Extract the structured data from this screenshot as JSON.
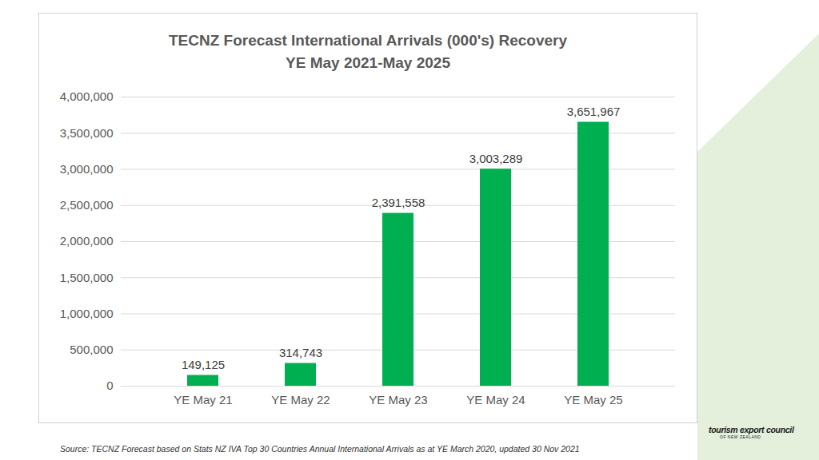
{
  "chart_data": {
    "type": "bar",
    "title": "TECNZ Forecast International Arrivals (000's) Recovery",
    "subtitle": "YE May 2021-May 2025",
    "categories": [
      "YE May 21",
      "YE May 22",
      "YE May 23",
      "YE May 24",
      "YE May 25"
    ],
    "values": [
      149125,
      314743,
      2391558,
      3003289,
      3651967
    ],
    "value_labels": [
      "149,125",
      "314,743",
      "2,391,558",
      "3,003,289",
      "3,651,967"
    ],
    "data_labels": true,
    "color": "#00b050",
    "ylim": [
      0,
      4000000
    ],
    "yticks": [
      0,
      {
        "value": 500000,
        "label": "500,000"
      },
      {
        "value": 1000000,
        "label": "1,000,000"
      },
      {
        "value": 1500000,
        "label": "1,500,000"
      },
      {
        "value": 2000000,
        "label": "2,000,000"
      },
      {
        "value": 2500000,
        "label": "2,500,000"
      },
      {
        "value": 3000000,
        "label": "3,000,000"
      },
      {
        "value": 3500000,
        "label": "3,500,000"
      },
      {
        "value": 4000000,
        "label": "4,000,000"
      }
    ],
    "grid": true,
    "source": "Source: TECNZ Forecast based on Stats NZ IVA Top 30 Countries Annual International Arrivals as at YE March 2020, updated 30 Nov 2021",
    "logo": [
      "tourism export council",
      "OF NEW ZEALAND"
    ]
  }
}
